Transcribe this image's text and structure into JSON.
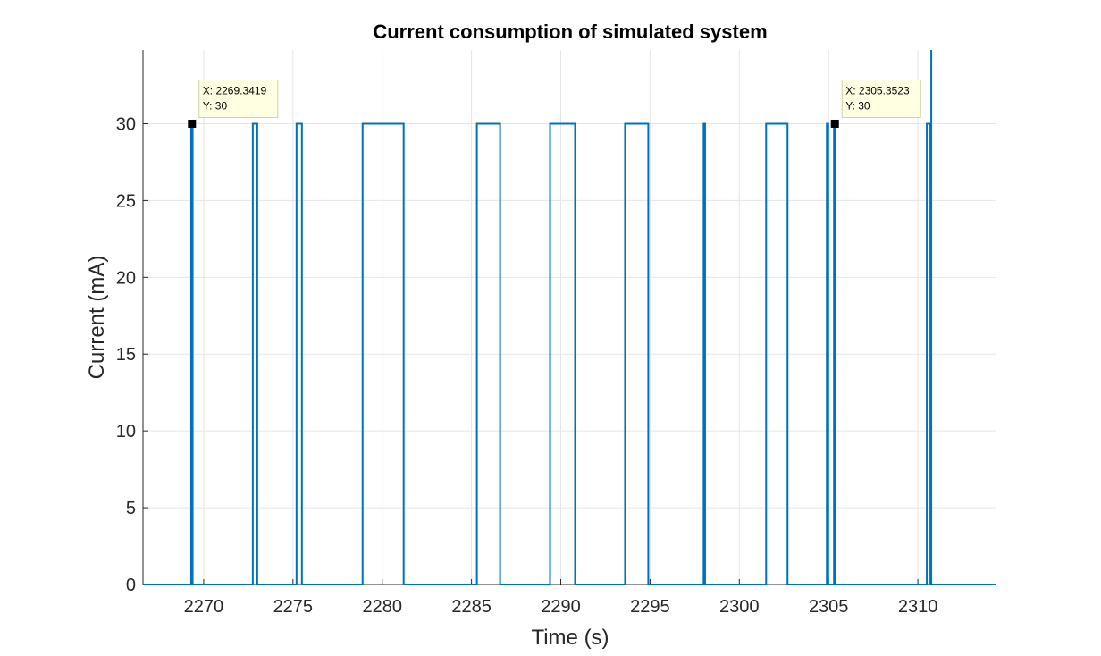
{
  "chart_data": {
    "type": "line",
    "title": "Current consumption of simulated system",
    "xlabel": "Time (s)",
    "ylabel": "Current (mA)",
    "xlim": [
      2266.6,
      2314.4
    ],
    "ylim": [
      0,
      34.8
    ],
    "xticks": [
      2270,
      2275,
      2280,
      2285,
      2290,
      2295,
      2300,
      2305,
      2310
    ],
    "yticks": [
      0,
      5,
      10,
      15,
      20,
      25,
      30
    ],
    "grid": true,
    "colors": {
      "line": "#0072bd",
      "grid": "#e5e5e5",
      "axis": "#262626",
      "datatip_bg": "#ffffe1",
      "datatip_border": "#d0d0a8"
    },
    "series": [
      {
        "pulses": [
          [
            2269.3,
            2269.38
          ],
          [
            2272.75,
            2273.0
          ],
          [
            2275.2,
            2275.5
          ],
          [
            2278.9,
            2281.2
          ],
          [
            2285.3,
            2286.6
          ],
          [
            2289.4,
            2290.8
          ],
          [
            2293.6,
            2294.9
          ],
          [
            2298.0,
            2298.08
          ],
          [
            2301.5,
            2302.7
          ],
          [
            2304.9,
            2304.98
          ],
          [
            2305.3,
            2305.38
          ],
          [
            2310.5,
            2310.7
          ]
        ],
        "pulse_value": 30,
        "base_value": 0,
        "spike": {
          "x": 2310.75,
          "y_top": 34.8
        }
      }
    ],
    "datatips": [
      {
        "x_label": "X: 2269.3419",
        "y_label": "Y: 30",
        "x": 2269.3419,
        "y": 30
      },
      {
        "x_label": "X: 2305.3523",
        "y_label": "Y: 30",
        "x": 2305.3523,
        "y": 30
      }
    ]
  }
}
